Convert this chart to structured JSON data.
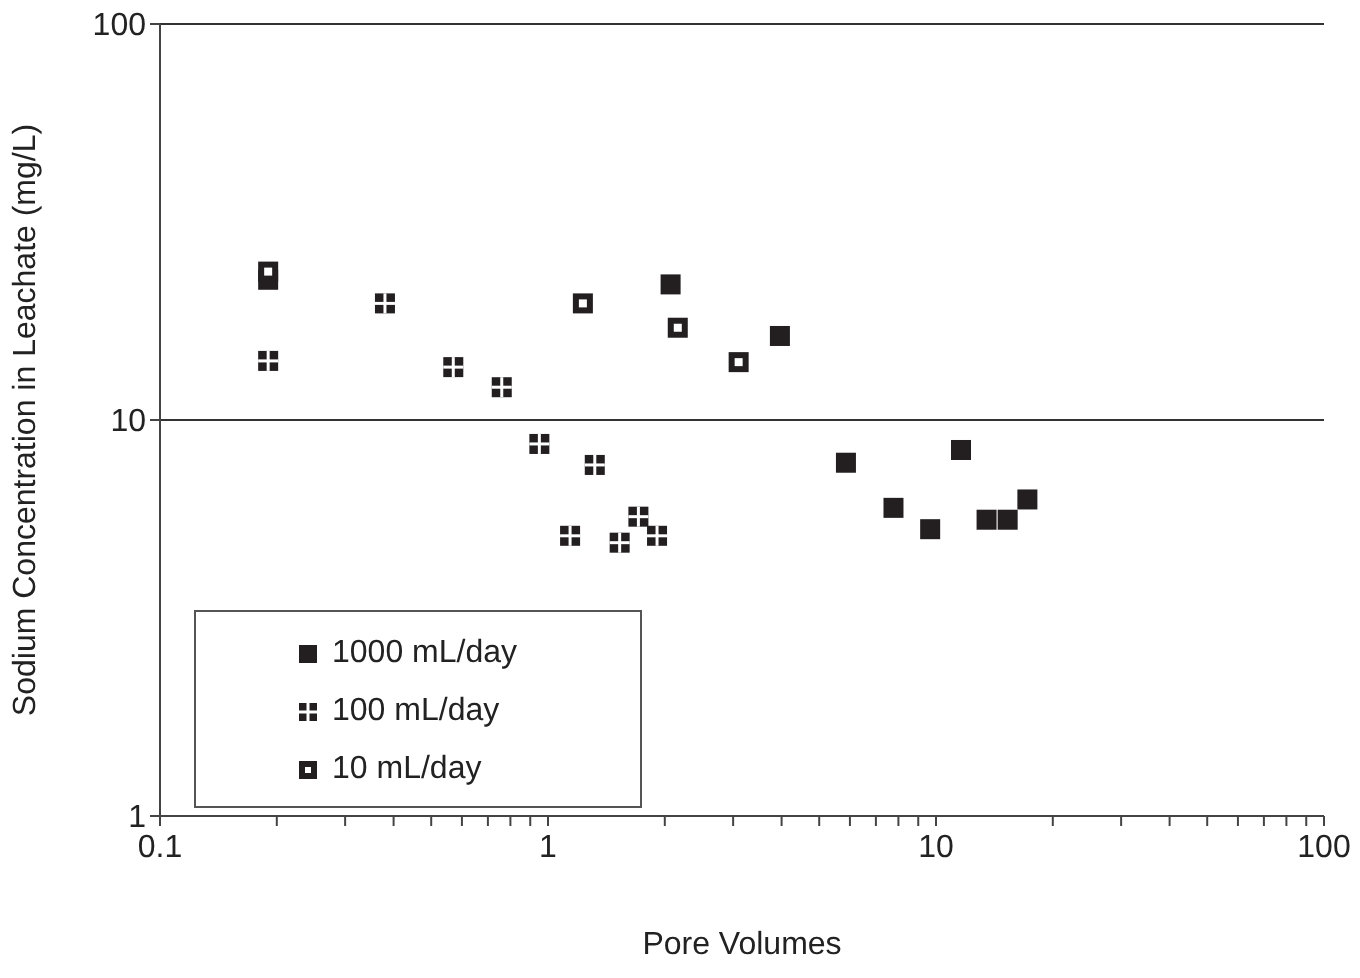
{
  "chart_data": {
    "type": "scatter",
    "xlabel": "Pore Volumes",
    "ylabel": "Sodium Concentration in Leachate (mg/L)",
    "log": "xy",
    "xlim": [
      0.1,
      100
    ],
    "ylim": [
      1,
      100
    ],
    "xticks": [
      0.1,
      {
        "value": 0.2,
        "label": null
      },
      {
        "value": 0.3,
        "label": null
      },
      {
        "value": 0.4,
        "label": null
      },
      {
        "value": 0.5,
        "label": null
      },
      {
        "value": 0.6,
        "label": null
      },
      {
        "value": 0.7,
        "label": null
      },
      {
        "value": 0.8,
        "label": null
      },
      {
        "value": 0.9,
        "label": null
      },
      1,
      {
        "value": 2,
        "label": null
      },
      {
        "value": 3,
        "label": null
      },
      {
        "value": 4,
        "label": null
      },
      {
        "value": 5,
        "label": null
      },
      {
        "value": 6,
        "label": null
      },
      {
        "value": 7,
        "label": null
      },
      {
        "value": 8,
        "label": null
      },
      {
        "value": 9,
        "label": null
      },
      10,
      {
        "value": 20,
        "label": null
      },
      {
        "value": 30,
        "label": null
      },
      {
        "value": 40,
        "label": null
      },
      {
        "value": 50,
        "label": null
      },
      {
        "value": 60,
        "label": null
      },
      {
        "value": 70,
        "label": null
      },
      {
        "value": 80,
        "label": null
      },
      {
        "value": 90,
        "label": null
      },
      100
    ],
    "yticks": [
      1,
      10,
      100
    ],
    "grid": "y",
    "legend": "bottom left",
    "marker": "square",
    "series": [
      {
        "name": "1000 mL/day",
        "color": "#231f20",
        "x": [
          0.19,
          2.07,
          3.96,
          5.86,
          11.6,
          7.77,
          9.66,
          13.5,
          15.3,
          17.2
        ],
        "values": [
          22.6,
          22.0,
          16.3,
          7.8,
          8.4,
          6.0,
          5.3,
          5.6,
          5.6,
          6.3
        ]
      },
      {
        "name": "100 mL/day",
        "color": "#231f20",
        "x": [
          0.19,
          0.38,
          0.57,
          0.76,
          0.95,
          1.32,
          1.71,
          1.91,
          1.53,
          1.14
        ],
        "values": [
          14.1,
          19.7,
          13.6,
          12.1,
          8.7,
          7.7,
          5.7,
          5.1,
          4.9,
          5.1
        ]
      },
      {
        "name": "10 mL/day",
        "color": "#231f20",
        "x": [
          0.19,
          1.23,
          2.16,
          3.1
        ],
        "values": [
          23.7,
          19.7,
          17.1,
          14.0
        ]
      }
    ]
  }
}
